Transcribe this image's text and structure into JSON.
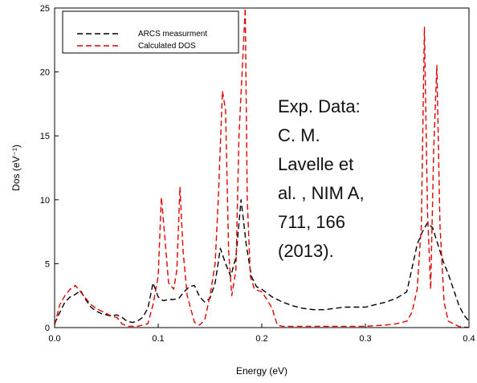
{
  "chart_data": {
    "type": "line",
    "xlabel": "Energy (eV)",
    "ylabel": "Dos (eV⁻¹)",
    "xlim": [
      0.0,
      0.4
    ],
    "ylim": [
      0,
      25
    ],
    "xticks": [
      "0.0",
      "0.1",
      "0.2",
      "0.3",
      "0.4"
    ],
    "yticks": [
      "0",
      "5",
      "10",
      "15",
      "20",
      "25"
    ],
    "xtick_values": [
      0.0,
      0.1,
      0.2,
      0.3,
      0.4
    ],
    "ytick_values": [
      0,
      5,
      10,
      15,
      20,
      25
    ],
    "grid": false,
    "legend_position": "top-left",
    "annotation": [
      "Exp. Data:",
      "C. M.",
      "Lavelle  et",
      "al. , NIM A,",
      "711, 166",
      "(2013)."
    ],
    "series": [
      {
        "name": "ARCS measurment",
        "color": "#000000",
        "style": "dashed",
        "x": [
          0.0,
          0.005,
          0.01,
          0.015,
          0.02,
          0.025,
          0.03,
          0.035,
          0.04,
          0.045,
          0.05,
          0.055,
          0.06,
          0.065,
          0.07,
          0.075,
          0.08,
          0.085,
          0.09,
          0.095,
          0.1,
          0.105,
          0.11,
          0.115,
          0.12,
          0.125,
          0.13,
          0.135,
          0.14,
          0.145,
          0.15,
          0.155,
          0.16,
          0.165,
          0.17,
          0.175,
          0.18,
          0.185,
          0.19,
          0.195,
          0.2,
          0.21,
          0.22,
          0.23,
          0.24,
          0.25,
          0.26,
          0.27,
          0.28,
          0.29,
          0.3,
          0.31,
          0.32,
          0.33,
          0.34,
          0.35,
          0.355,
          0.36,
          0.365,
          0.37,
          0.375,
          0.38,
          0.385,
          0.39,
          0.395,
          0.4
        ],
        "y": [
          0.3,
          1.2,
          2.0,
          2.4,
          2.6,
          2.9,
          2.2,
          1.6,
          1.3,
          1.1,
          1.0,
          0.9,
          1.0,
          0.8,
          0.5,
          0.4,
          0.5,
          0.8,
          1.5,
          3.5,
          2.4,
          2.1,
          2.2,
          2.2,
          2.3,
          2.8,
          3.2,
          3.3,
          2.4,
          2.0,
          2.3,
          3.5,
          6.2,
          5.0,
          4.0,
          5.5,
          10.0,
          6.5,
          4.0,
          3.2,
          3.0,
          2.4,
          2.0,
          1.7,
          1.5,
          1.4,
          1.4,
          1.5,
          1.6,
          1.6,
          1.6,
          1.8,
          2.0,
          2.3,
          2.8,
          6.5,
          7.5,
          8.2,
          7.8,
          6.5,
          5.2,
          4.2,
          3.0,
          1.8,
          1.0,
          0.5
        ]
      },
      {
        "name": "Calculated DOS",
        "color": "#e00000",
        "style": "dashed",
        "x": [
          0.0,
          0.005,
          0.01,
          0.015,
          0.02,
          0.025,
          0.03,
          0.035,
          0.04,
          0.045,
          0.05,
          0.055,
          0.06,
          0.065,
          0.07,
          0.08,
          0.09,
          0.095,
          0.1,
          0.103,
          0.106,
          0.11,
          0.115,
          0.118,
          0.121,
          0.124,
          0.128,
          0.135,
          0.14,
          0.145,
          0.15,
          0.155,
          0.158,
          0.162,
          0.165,
          0.168,
          0.171,
          0.175,
          0.178,
          0.181,
          0.184,
          0.186,
          0.189,
          0.193,
          0.2,
          0.205,
          0.21,
          0.215,
          0.22,
          0.23,
          0.25,
          0.28,
          0.3,
          0.32,
          0.33,
          0.34,
          0.345,
          0.35,
          0.354,
          0.357,
          0.36,
          0.363,
          0.366,
          0.369,
          0.372,
          0.376,
          0.38,
          0.39,
          0.4
        ],
        "y": [
          0.2,
          1.8,
          2.5,
          3.0,
          3.3,
          2.8,
          2.3,
          1.8,
          1.5,
          1.3,
          1.1,
          0.9,
          0.8,
          0.3,
          0.1,
          0.1,
          0.3,
          1.8,
          4.0,
          10.2,
          7.5,
          3.5,
          3.0,
          4.5,
          11.0,
          6.0,
          2.5,
          0.4,
          0.2,
          0.6,
          2.5,
          5.0,
          10.0,
          18.5,
          17.0,
          6.0,
          2.5,
          4.5,
          15.0,
          20.0,
          25.0,
          10.0,
          4.0,
          3.0,
          2.8,
          2.2,
          1.5,
          0.2,
          0.1,
          0.1,
          0.1,
          0.1,
          0.1,
          0.2,
          0.3,
          0.5,
          1.2,
          3.0,
          8.0,
          23.5,
          9.0,
          3.0,
          14.0,
          20.5,
          8.0,
          2.0,
          0.5,
          0.1,
          0.0
        ]
      }
    ]
  }
}
